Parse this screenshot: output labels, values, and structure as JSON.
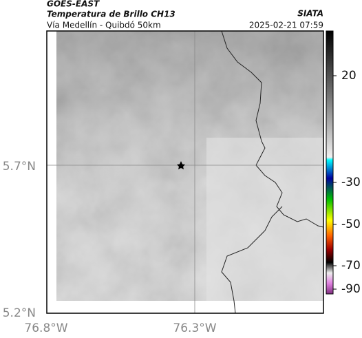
{
  "header": {
    "title": "GOES-EAST",
    "subtitle": "Temperatura de Brillo CH13",
    "route": "Vía Medellín - Quibdó 50km",
    "source": "SIATA",
    "timestamp": "2025-02-21 07:59"
  },
  "map": {
    "lat_labels": [
      "5.7°N",
      "5.2°N"
    ],
    "lon_labels": [
      "76.8°W",
      "76.3°W"
    ]
  },
  "colorbar": {
    "ticks": [
      20,
      -30,
      -50,
      -70,
      -90
    ]
  }
}
